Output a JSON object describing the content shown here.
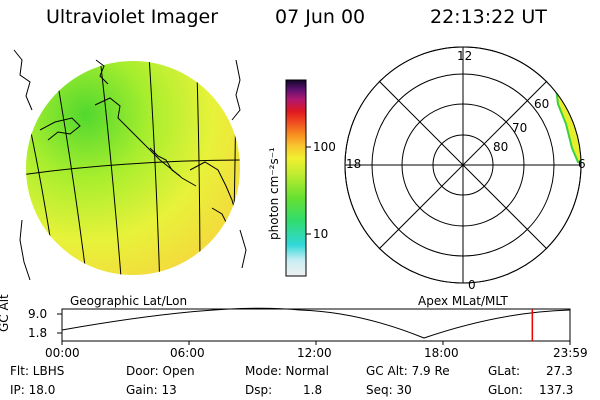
{
  "header": {
    "instrument": "Ultraviolet Imager",
    "date": "07 Jun 00",
    "time": "22:13:22 UT"
  },
  "colorbar": {
    "unit_label": "photon cm⁻²s⁻¹",
    "ticks": [
      "100",
      "10"
    ],
    "scale": "log"
  },
  "map_panel": {
    "label": "Geographic Lat/Lon"
  },
  "polar_panel": {
    "label": "Apex MLat/MLT",
    "mlt_labels": {
      "top": "12",
      "left": "18",
      "right": "6",
      "bottom": "0"
    },
    "lat_labels": [
      "60",
      "70",
      "80"
    ]
  },
  "timeline": {
    "ylabel": "GC Alt",
    "yticks": [
      "9.0",
      "1.8"
    ],
    "xticks": [
      "00:00",
      "06:00",
      "12:00",
      "18:00",
      "23:59"
    ],
    "current_time_hours": 22.22,
    "marker_color": "#ee0000"
  },
  "status": {
    "flt": "Flt: LBHS",
    "ip": "IP: 18.0",
    "door": "Door: Open",
    "gain": "Gain: 13",
    "mode": "Mode: Normal",
    "dsp_label": "Dsp:",
    "dsp_value": "1.8",
    "gc_alt": "GC Alt: 7.9 Re",
    "seq": "Seq: 30",
    "glat": "GLat:",
    "glat_value": "27.3",
    "glon": "GLon:",
    "glon_value": "137.3"
  }
}
